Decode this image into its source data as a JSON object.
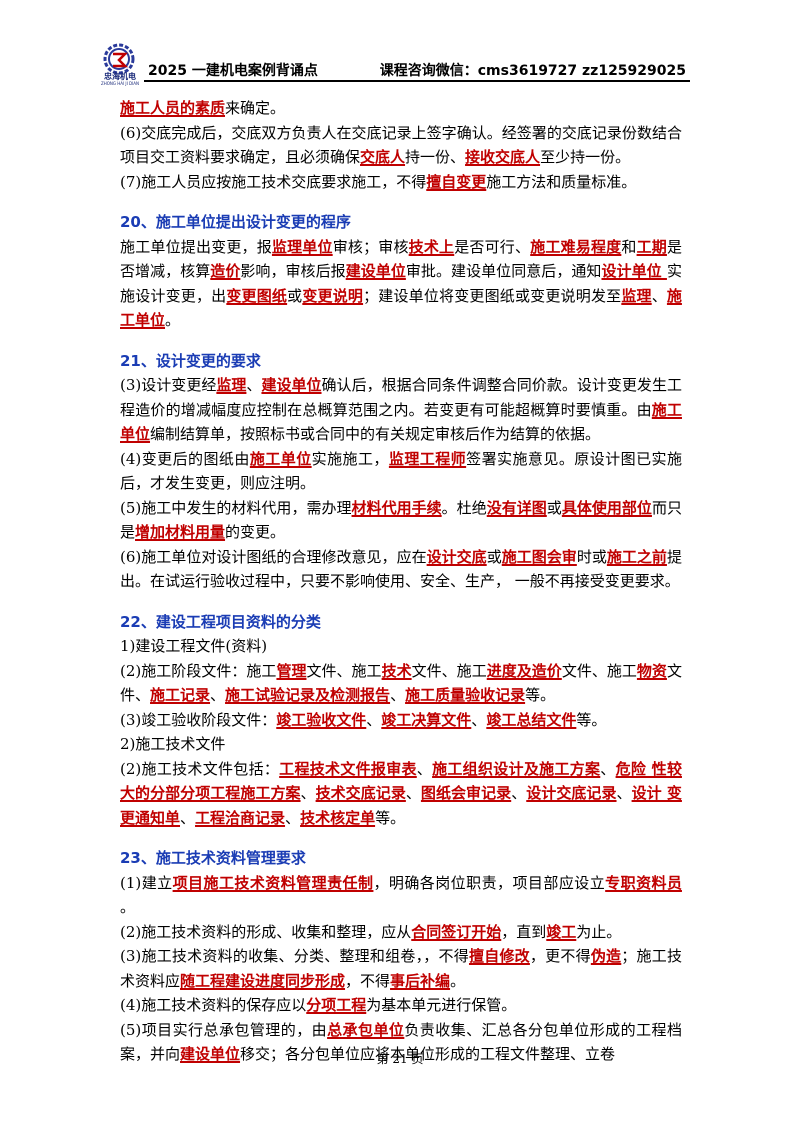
{
  "header": {
    "brand": "忠海机电",
    "brand_sub": "ZHONG HAI JI DIAN",
    "left": "2025 一建机电案例背诵点",
    "right": "课程咨询微信：cms3619727  zz125929025"
  },
  "body": [
    {
      "t": "p",
      "s": [
        [
          "施工人员的素质",
          1
        ],
        [
          "来确定。"
        ]
      ]
    },
    {
      "t": "p",
      "s": [
        [
          "(6)交底完成后，交底双方负责人在交底记录上签字确认。经签署的交底记录份数结合项目交工资料要求确定，且必须确保"
        ],
        [
          "交底人",
          1
        ],
        [
          "持一份、"
        ],
        [
          "接收交底人",
          1
        ],
        [
          "至少持一份。"
        ]
      ]
    },
    {
      "t": "p",
      "s": [
        [
          "(7)施工人员应按施工技术交底要求施工，不得"
        ],
        [
          "擅自变更",
          1
        ],
        [
          "施工方法和质量标准。"
        ]
      ]
    },
    {
      "t": "gap"
    },
    {
      "t": "h",
      "s": [
        [
          "20、施工单位提出设计变更的程序"
        ]
      ]
    },
    {
      "t": "p",
      "s": [
        [
          "施工单位提出变更，报"
        ],
        [
          "监理单位",
          1
        ],
        [
          "审核；审核"
        ],
        [
          "技术上",
          1
        ],
        [
          "是否可行、"
        ],
        [
          "施工难易程度",
          1
        ],
        [
          "和"
        ],
        [
          "工期",
          1
        ],
        [
          "是否增减，核算"
        ],
        [
          "造价",
          1
        ],
        [
          "影响，审核后报"
        ],
        [
          "建设单位",
          1
        ],
        [
          "审批。建设单位同意后，通知"
        ],
        [
          "设计单位 ",
          1
        ],
        [
          "实施设计变更，出"
        ],
        [
          "变更图纸",
          1
        ],
        [
          "或"
        ],
        [
          "变更说明",
          1
        ],
        [
          "；建设单位将变更图纸或变更说明发至"
        ],
        [
          "监理",
          1
        ],
        [
          "、"
        ],
        [
          "施 工单位",
          1
        ],
        [
          "。"
        ]
      ]
    },
    {
      "t": "gap"
    },
    {
      "t": "h",
      "s": [
        [
          "21、设计变更的要求"
        ]
      ]
    },
    {
      "t": "p",
      "s": [
        [
          "(3)设计变更经"
        ],
        [
          "监理",
          1
        ],
        [
          "、"
        ],
        [
          "建设单位",
          1
        ],
        [
          "确认后，根据合同条件调整合同价款。设计变更发生工程造价的增减幅度应控制在总概算范围之内。若变更有可能超概算时要慎重。由"
        ],
        [
          "施工单位",
          1
        ],
        [
          "编制结算单，按照标书或合同中的有关规定审核后作为结算的依据。"
        ]
      ]
    },
    {
      "t": "p",
      "s": [
        [
          "(4)变更后的图纸由"
        ],
        [
          "施工单位",
          1
        ],
        [
          "实施施工，"
        ],
        [
          "监理工程师",
          1
        ],
        [
          "签署实施意见。原设计图已实施后，才发生变更，则应注明。"
        ]
      ]
    },
    {
      "t": "p",
      "s": [
        [
          "(5)施工中发生的材料代用，需办理"
        ],
        [
          "材料代用手续",
          1
        ],
        [
          "。杜绝"
        ],
        [
          "没有详图",
          1
        ],
        [
          "或"
        ],
        [
          "具体使用部位",
          1
        ],
        [
          "而只是"
        ],
        [
          "增加材料用量",
          1
        ],
        [
          "的变更。"
        ]
      ]
    },
    {
      "t": "p",
      "s": [
        [
          "(6)施工单位对设计图纸的合理修改意见，应在"
        ],
        [
          "设计交底",
          1
        ],
        [
          "或"
        ],
        [
          "施工图会审",
          1
        ],
        [
          "时或"
        ],
        [
          "施工之前",
          1
        ],
        [
          "提出。在试运行验收过程中，只要不影响使用、安全、生产， 一般不再接受变更要求。"
        ]
      ]
    },
    {
      "t": "gap"
    },
    {
      "t": "h",
      "s": [
        [
          "22、建设工程项目资料的分类"
        ]
      ]
    },
    {
      "t": "p",
      "s": [
        [
          "1)建设工程文件(资料)"
        ]
      ]
    },
    {
      "t": "p",
      "s": [
        [
          "(2)施工阶段文件：施工"
        ],
        [
          "管理",
          1
        ],
        [
          "文件、施工"
        ],
        [
          "技术",
          1
        ],
        [
          "文件、施工"
        ],
        [
          "进度及造价",
          1
        ],
        [
          "文件、施工"
        ],
        [
          "物资",
          1
        ],
        [
          "文件、"
        ],
        [
          "施工记录",
          1
        ],
        [
          "、"
        ],
        [
          "施工试验记录及检测报告",
          1
        ],
        [
          "、"
        ],
        [
          "施工质量验收记录",
          1
        ],
        [
          "等。"
        ]
      ]
    },
    {
      "t": "p",
      "s": [
        [
          "(3)竣工验收阶段文件："
        ],
        [
          "竣工验收文件",
          1
        ],
        [
          "、"
        ],
        [
          "竣工决算文件",
          1
        ],
        [
          "、"
        ],
        [
          "竣工总结文件",
          1
        ],
        [
          "等。"
        ]
      ]
    },
    {
      "t": "p",
      "s": [
        [
          "2)施工技术文件"
        ]
      ]
    },
    {
      "t": "p",
      "s": [
        [
          "(2)施工技术文件包括："
        ],
        [
          "工程技术文件报审表",
          1
        ],
        [
          "、"
        ],
        [
          "施工组织设计及施工方案",
          1
        ],
        [
          "、"
        ],
        [
          "危险 性较大的分部分项工程施工方案",
          1
        ],
        [
          "、"
        ],
        [
          "技术交底记录",
          1
        ],
        [
          "、"
        ],
        [
          "图纸会审记录",
          1
        ],
        [
          "、"
        ],
        [
          "设计交底记录",
          1
        ],
        [
          "、"
        ],
        [
          "设计 变更通知单",
          1
        ],
        [
          "、"
        ],
        [
          "工程洽商记录",
          1
        ],
        [
          "、"
        ],
        [
          "技术核定单",
          1
        ],
        [
          "等。"
        ]
      ]
    },
    {
      "t": "gap"
    },
    {
      "t": "h",
      "s": [
        [
          "23、施工技术资料管理要求"
        ]
      ]
    },
    {
      "t": "p",
      "s": [
        [
          "(1)建立"
        ],
        [
          "项目施工技术资料管理责任制",
          1
        ],
        [
          "，明确各岗位职责，项目部应设立"
        ],
        [
          "专职资料员",
          1
        ],
        [
          " 。"
        ]
      ]
    },
    {
      "t": "p",
      "s": [
        [
          "(2)施工技术资料的形成、收集和整理，应从"
        ],
        [
          "合同签订开始",
          1
        ],
        [
          "，直到"
        ],
        [
          "竣工",
          1
        ],
        [
          "为止。"
        ]
      ]
    },
    {
      "t": "p",
      "s": [
        [
          "(3)施工技术资料的收集、分类、整理和组卷，，不得"
        ],
        [
          "擅自修改",
          1
        ],
        [
          "，更不得"
        ],
        [
          "伪造",
          1
        ],
        [
          "；施工技术资料应"
        ],
        [
          "随工程建设进度同步形成",
          1
        ],
        [
          "，不得"
        ],
        [
          "事后补编",
          1
        ],
        [
          "。"
        ]
      ]
    },
    {
      "t": "p",
      "s": [
        [
          "(4)施工技术资料的保存应以"
        ],
        [
          "分项工程",
          1
        ],
        [
          "为基本单元进行保管。"
        ]
      ]
    },
    {
      "t": "p",
      "s": [
        [
          "(5)项目实行总承包管理的，由"
        ],
        [
          "总承包单位",
          1
        ],
        [
          "负责收集、汇总各分包单位形成的工程档案，并向"
        ],
        [
          "建设单位",
          1
        ],
        [
          "移交；各分包单位应将本单位形成的工程文件整理、立卷"
        ]
      ]
    }
  ],
  "footer": "第 21 页"
}
